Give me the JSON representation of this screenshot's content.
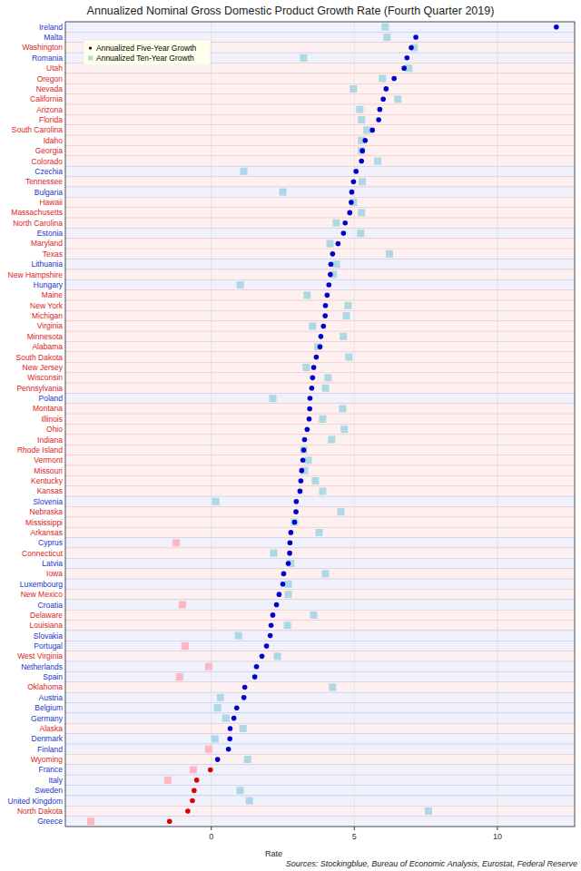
{
  "chart_data": {
    "type": "dot",
    "orientation": "horizontal",
    "title": "Annualized Nominal Gross Domestic Product Growth Rate (Fourth Quarter 2019)",
    "x_label": "Rate",
    "annotations": [
      "Sources: Stockingblue, Bureau of Economic Analysis, Eurostat, Federal Reserve"
    ],
    "categories": [
      "Ireland",
      "Malta",
      "Washington",
      "Romania",
      "Utah",
      "Oregon",
      "Nevada",
      "California",
      "Arizona",
      "Florida",
      "South Carolina",
      "Idaho",
      "Georgia",
      "Colorado",
      "Czechia",
      "Tennessee",
      "Bulgaria",
      "Hawaii",
      "Massachusetts",
      "North Carolina",
      "Estonia",
      "Maryland",
      "Texas",
      "Lithuania",
      "New Hampshire",
      "Hungary",
      "Maine",
      "New York",
      "Michigan",
      "Virginia",
      "Minnesota",
      "Alabama",
      "South Dakota",
      "New Jersey",
      "Wisconsin",
      "Pennsylvania",
      "Poland",
      "Montana",
      "Illinois",
      "Ohio",
      "Indiana",
      "Rhode Island",
      "Vermont",
      "Missouri",
      "Kentucky",
      "Kansas",
      "Slovenia",
      "Nebraska",
      "Mississippi",
      "Arkansas",
      "Cyprus",
      "Connecticut",
      "Latvia",
      "Iowa",
      "Luxembourg",
      "New Mexico",
      "Croatia",
      "Delaware",
      "Louisiana",
      "Slovakia",
      "Portugal",
      "West Virginia",
      "Netherlands",
      "Spain",
      "Oklahoma",
      "Austria",
      "Belgium",
      "Germany",
      "Alaska",
      "Denmark",
      "Finland",
      "Wyoming",
      "France",
      "Italy",
      "Sweden",
      "United Kingdom",
      "North Dakota",
      "Greece"
    ],
    "colors": [
      "#2233cc",
      "#2233cc",
      "#dd2222",
      "#2233cc",
      "#dd2222",
      "#dd2222",
      "#dd2222",
      "#dd2222",
      "#dd2222",
      "#dd2222",
      "#dd2222",
      "#dd2222",
      "#dd2222",
      "#dd2222",
      "#2233cc",
      "#dd2222",
      "#2233cc",
      "#dd2222",
      "#dd2222",
      "#dd2222",
      "#2233cc",
      "#dd2222",
      "#dd2222",
      "#2233cc",
      "#dd2222",
      "#2233cc",
      "#dd2222",
      "#dd2222",
      "#dd2222",
      "#dd2222",
      "#dd2222",
      "#dd2222",
      "#dd2222",
      "#dd2222",
      "#dd2222",
      "#dd2222",
      "#2233cc",
      "#dd2222",
      "#dd2222",
      "#dd2222",
      "#dd2222",
      "#dd2222",
      "#dd2222",
      "#dd2222",
      "#dd2222",
      "#dd2222",
      "#2233cc",
      "#dd2222",
      "#dd2222",
      "#dd2222",
      "#2233cc",
      "#dd2222",
      "#2233cc",
      "#dd2222",
      "#2233cc",
      "#dd2222",
      "#2233cc",
      "#dd2222",
      "#dd2222",
      "#2233cc",
      "#2233cc",
      "#dd2222",
      "#2233cc",
      "#2233cc",
      "#dd2222",
      "#2233cc",
      "#2233cc",
      "#2233cc",
      "#dd2222",
      "#2233cc",
      "#2233cc",
      "#dd2222",
      "#2233cc",
      "#2233cc",
      "#2233cc",
      "#2233cc",
      "#dd2222",
      "#2233cc"
    ],
    "series": [
      {
        "name": "Annualized Five-Year Growth",
        "color": "#0000cc",
        "marker": "circle",
        "values": [
          12.06,
          7.15,
          6.99,
          6.84,
          6.74,
          6.39,
          6.11,
          6.01,
          5.89,
          5.85,
          5.63,
          5.38,
          5.28,
          5.25,
          5.06,
          4.97,
          4.91,
          4.89,
          4.84,
          4.68,
          4.62,
          4.43,
          4.24,
          4.18,
          4.16,
          4.11,
          4.05,
          3.99,
          3.98,
          3.92,
          3.83,
          3.8,
          3.67,
          3.58,
          3.54,
          3.51,
          3.45,
          3.44,
          3.42,
          3.35,
          3.26,
          3.23,
          3.2,
          3.16,
          3.13,
          3.1,
          2.97,
          2.96,
          2.91,
          2.78,
          2.75,
          2.74,
          2.69,
          2.53,
          2.5,
          2.37,
          2.28,
          2.15,
          2.09,
          2.06,
          1.93,
          1.77,
          1.58,
          1.52,
          1.17,
          1.14,
          0.89,
          0.79,
          0.66,
          0.65,
          0.6,
          0.22,
          -0.03,
          -0.51,
          -0.6,
          -0.66,
          -0.82,
          -1.46
        ]
      },
      {
        "name": "Annualized Ten-Year Growth",
        "color": "#add8e6",
        "marker": "square",
        "values": [
          6.08,
          6.14,
          7.09,
          3.23,
          6.9,
          5.98,
          4.97,
          6.52,
          5.19,
          5.25,
          5.44,
          5.25,
          5.25,
          5.82,
          1.14,
          5.28,
          2.5,
          4.97,
          5.25,
          4.37,
          5.22,
          4.15,
          6.23,
          4.37,
          4.27,
          1.01,
          3.35,
          4.78,
          4.72,
          3.54,
          4.62,
          3.73,
          4.81,
          3.32,
          4.08,
          3.99,
          2.15,
          4.59,
          3.89,
          4.65,
          4.21,
          3.23,
          3.39,
          3.26,
          3.64,
          3.89,
          0.16,
          4.53,
          2.91,
          3.77,
          -1.23,
          2.18,
          2.78,
          3.99,
          2.69,
          2.69,
          -1.01,
          3.58,
          2.66,
          0.95,
          -0.92,
          2.31,
          -0.09,
          -1.11,
          4.24,
          0.32,
          0.22,
          0.51,
          1.11,
          0.13,
          -0.09,
          1.27,
          -0.63,
          -1.52,
          1.01,
          1.33,
          7.59,
          -4.21
        ]
      }
    ],
    "xlim": [
      -5.1,
      12.7
    ],
    "xticks": [
      0,
      5,
      10
    ],
    "grid": true,
    "legend": "top-left"
  }
}
